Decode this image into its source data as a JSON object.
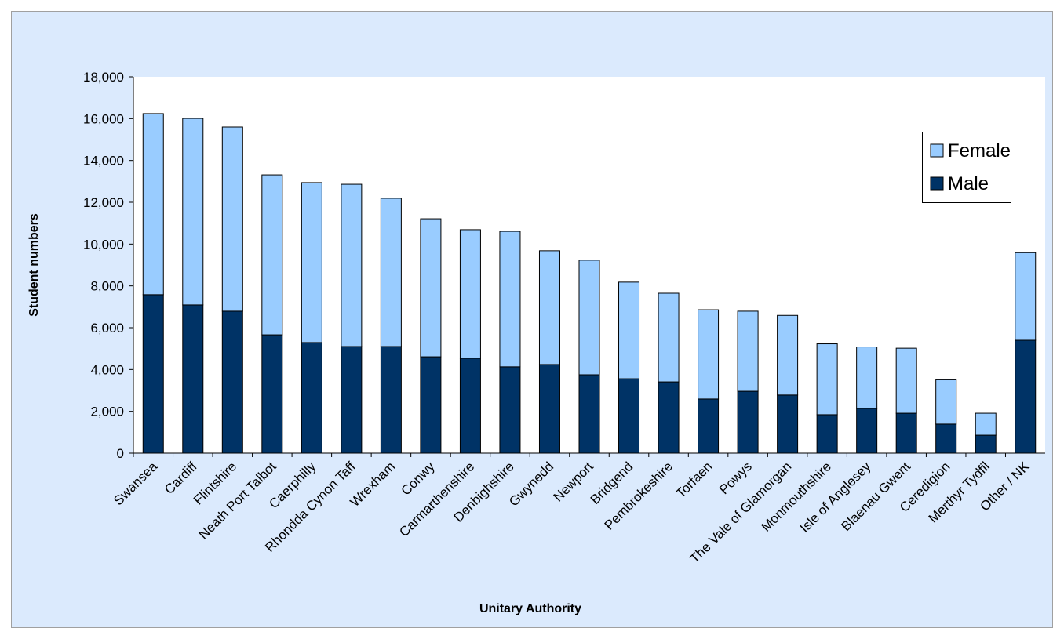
{
  "chart_data": {
    "type": "stacked-bar",
    "x_label": "Unitary Authority",
    "y_label": "Student numbers",
    "categories": [
      "Swansea",
      "Cardiff",
      "Flintshire",
      "Neath Port Talbot",
      "Caerphilly",
      "Rhondda Cynon Taff",
      "Wrexham",
      "Conwy",
      "Carmarthenshire",
      "Denbighshire",
      "Gwynedd",
      "Newport",
      "Bridgend",
      "Pembrokeshire",
      "Torfaen",
      "Powys",
      "The Vale of Glamorgan",
      "Monmouthshire",
      "Isle of Anglesey",
      "Blaenau Gwent",
      "Ceredigion",
      "Merthyr Tydfil",
      "Other / NK"
    ],
    "series": [
      {
        "name": "Male",
        "color": "#003366",
        "values": [
          7580,
          7090,
          6790,
          5660,
          5290,
          5100,
          5100,
          4610,
          4540,
          4130,
          4240,
          3750,
          3560,
          3410,
          2590,
          2960,
          2780,
          1840,
          2140,
          1910,
          1390,
          860,
          5400
        ]
      },
      {
        "name": "Female",
        "color": "#99ccff",
        "values": [
          8660,
          8920,
          8810,
          7650,
          7650,
          7760,
          7090,
          6600,
          6150,
          6480,
          5440,
          5480,
          4620,
          4240,
          4270,
          3830,
          3810,
          3390,
          2940,
          3110,
          2120,
          1050,
          4190
        ]
      }
    ],
    "ylim": [
      0,
      18000
    ],
    "yticks": [
      0,
      {
        "value": 2000,
        "label": "2,000"
      },
      {
        "value": 4000,
        "label": "4,000"
      },
      {
        "value": 6000,
        "label": "6,000"
      },
      {
        "value": 8000,
        "label": "8,000"
      },
      {
        "value": 10000,
        "label": "10,000"
      },
      {
        "value": 12000,
        "label": "12,000"
      },
      {
        "value": 14000,
        "label": "14,000"
      },
      {
        "value": 16000,
        "label": "16,000"
      },
      {
        "value": 18000,
        "label": "18,000"
      }
    ],
    "legend_position": "upper right"
  }
}
